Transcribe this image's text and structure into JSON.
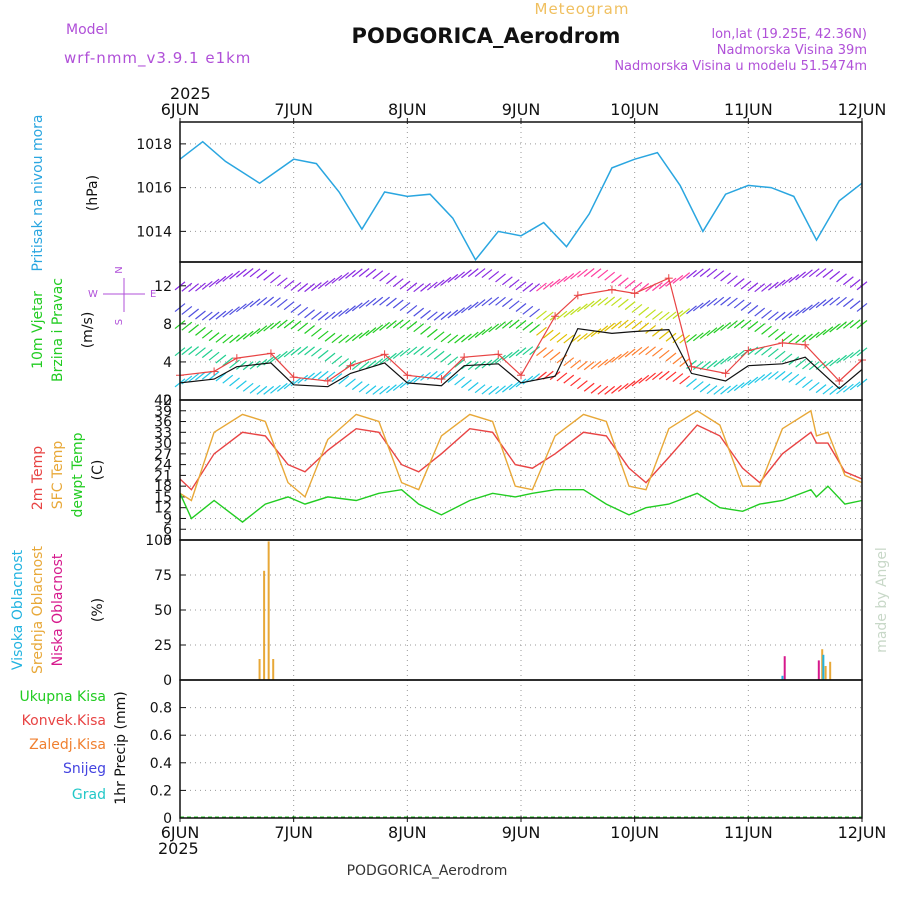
{
  "header": {
    "model_label": "Model",
    "model_value": "wrf-nmm_v3.9.1 e1km",
    "meteogram_label": "Meteogram",
    "station_title": "PODGORICA_Aerodrom",
    "coords": "lon,lat (19.25E, 42.36N)",
    "altitude": "Nadmorska Visina 39m",
    "model_altitude": "Nadmorska Visina u modelu 51.5474m"
  },
  "footer": {
    "station": "PODGORICA_Aerodrom",
    "credit": "made by Angel"
  },
  "time_axis": {
    "year": "2025",
    "days": [
      "6JUN",
      "7JUN",
      "8JUN",
      "9JUN",
      "10JUN",
      "11JUN",
      "12JUN"
    ]
  },
  "colors": {
    "pressure": "#2aa6e0",
    "temp2m": "#e84444",
    "sfc_temp": "#e8a838",
    "dewpt": "#22cc22",
    "wind_speed": "#111111",
    "gust": "#e84444",
    "high_cloud": "#22b3e0",
    "mid_cloud": "#e8a838",
    "low_cloud": "#d6188c",
    "title": "#111111",
    "purple": "#b050d8"
  },
  "panel_labels": {
    "pressure": {
      "name": "Pritisak na nivou mora",
      "unit": "(hPa)"
    },
    "wind": {
      "name1": "10m Vjetar",
      "name2": "Brzina i Pravac",
      "unit": "(m/s)",
      "compass_n": "N",
      "compass_w": "W",
      "compass_e": "E",
      "compass_s": "S"
    },
    "temp": {
      "name1": "2m Temp",
      "name2": "SFC Temp",
      "name3": "dewpt Temp",
      "unit": "(C)"
    },
    "cloud": {
      "name1": "Visoka Oblacnost",
      "name2": "Srednja Oblacnost",
      "name3": "Niska Oblacnost",
      "unit": "(%)"
    },
    "precip": {
      "unit": "1hr Precip (mm)",
      "legend": [
        "Ukupna Kisa",
        "Konvek.Kisa",
        "Zaledj.Kisa",
        "Snijeg",
        "Grad"
      ]
    }
  },
  "chart_data": [
    {
      "type": "line",
      "name": "pressure",
      "x_unit": "days from 6JUN 00h",
      "ylim": [
        1012.6,
        1019
      ],
      "yticks": [
        "1014",
        "1016",
        "1018"
      ],
      "x": [
        0,
        0.2,
        0.4,
        0.7,
        1.0,
        1.2,
        1.4,
        1.6,
        1.8,
        2.0,
        2.2,
        2.4,
        2.6,
        2.8,
        3.0,
        3.2,
        3.4,
        3.6,
        3.8,
        4.0,
        4.2,
        4.4,
        4.6,
        4.8,
        5.0,
        5.2,
        5.4,
        5.6,
        5.8,
        6.0
      ],
      "series": [
        {
          "values": [
            1017.3,
            1018.1,
            1017.2,
            1016.2,
            1017.3,
            1017.1,
            1015.8,
            1014.1,
            1015.8,
            1015.6,
            1015.7,
            1014.6,
            1012.7,
            1014.0,
            1013.8,
            1014.4,
            1013.3,
            1014.8,
            1016.9,
            1017.3,
            1017.6,
            1016.1,
            1014.0,
            1015.7,
            1016.1,
            1016.0,
            1015.6,
            1013.6,
            1015.4,
            1016.2
          ]
        }
      ]
    },
    {
      "type": "line",
      "name": "wind",
      "ylim": [
        0,
        14.5
      ],
      "yticks": [
        "0",
        "4",
        "8",
        "12"
      ],
      "x": [
        0,
        0.3,
        0.5,
        0.8,
        1.0,
        1.3,
        1.5,
        1.8,
        2.0,
        2.3,
        2.5,
        2.8,
        3.0,
        3.3,
        3.5,
        3.8,
        4.0,
        4.3,
        4.5,
        4.8,
        5.0,
        5.3,
        5.5,
        5.8,
        6.0
      ],
      "series": [
        {
          "values": [
            1.8,
            2.2,
            3.5,
            3.9,
            1.6,
            1.4,
            2.8,
            3.9,
            1.8,
            1.5,
            3.6,
            3.8,
            1.8,
            2.5,
            7.5,
            7.0,
            7.2,
            7.4,
            2.8,
            2.0,
            3.6,
            3.8,
            4.5,
            1.2,
            3.2
          ]
        },
        {
          "values": [
            2.6,
            3.0,
            4.4,
            4.9,
            2.4,
            2.0,
            3.6,
            4.8,
            2.6,
            2.2,
            4.5,
            4.8,
            2.6,
            8.8,
            11.0,
            11.6,
            11.2,
            12.8,
            3.5,
            2.8,
            5.2,
            6.0,
            5.8,
            2.0,
            4.2
          ]
        }
      ]
    },
    {
      "type": "line",
      "name": "temperature",
      "ylim": [
        3,
        42
      ],
      "yticks": [
        "3",
        "6",
        "9",
        "12",
        "15",
        "18",
        "21",
        "24",
        "27",
        "30",
        "33",
        "36",
        "39",
        "42"
      ],
      "x": [
        0,
        0.1,
        0.3,
        0.55,
        0.75,
        0.95,
        1.1,
        1.3,
        1.55,
        1.75,
        1.95,
        2.1,
        2.3,
        2.55,
        2.75,
        2.95,
        3.1,
        3.3,
        3.55,
        3.75,
        3.95,
        4.1,
        4.3,
        4.55,
        4.75,
        4.95,
        5.1,
        5.3,
        5.55,
        5.6,
        5.7,
        5.85,
        6.0
      ],
      "series": [
        {
          "values": [
            20,
            17,
            27,
            33,
            32,
            24,
            22,
            28,
            34,
            33,
            24,
            22,
            27,
            34,
            33,
            24,
            23,
            27,
            33,
            32,
            23,
            19,
            26,
            35,
            32,
            23,
            19,
            27,
            33,
            30,
            30,
            22,
            20
          ]
        },
        {
          "values": [
            16,
            14,
            33,
            38,
            36,
            19,
            15,
            31,
            38,
            36,
            19,
            17,
            32,
            38,
            36,
            18,
            17,
            32,
            38,
            36,
            18,
            17,
            34,
            39,
            35,
            18,
            18,
            34,
            39,
            32,
            33,
            21,
            19
          ]
        },
        {
          "values": [
            16,
            9,
            14,
            8,
            13,
            15,
            13,
            15,
            14,
            16,
            17,
            13,
            10,
            14,
            16,
            15,
            16,
            17,
            17,
            13,
            10,
            12,
            13,
            16,
            12,
            11,
            13,
            14,
            17,
            15,
            18,
            13,
            14
          ]
        }
      ]
    },
    {
      "type": "bar",
      "name": "cloud_cover",
      "ylim": [
        0,
        100
      ],
      "yticks": [
        "0",
        "25",
        "50",
        "75",
        "100"
      ],
      "series": [
        {
          "name": "Srednja Oblacnost",
          "x": [
            0.7,
            0.74,
            0.78,
            0.82,
            5.65,
            5.68,
            5.72
          ],
          "values": [
            15,
            78,
            99,
            15,
            22,
            10,
            13
          ]
        },
        {
          "name": "Niska Oblacnost",
          "x": [
            5.32,
            5.62
          ],
          "values": [
            17,
            14
          ]
        },
        {
          "name": "Visoka Oblacnost",
          "x": [
            5.3,
            5.66
          ],
          "values": [
            3,
            18
          ]
        }
      ]
    },
    {
      "type": "bar",
      "name": "precipitation",
      "ylim": [
        0,
        1
      ],
      "yticks": [
        "0",
        "0.2",
        "0.4",
        "0.6",
        "0.8"
      ],
      "series": [
        {
          "name": "Ukupna Kisa",
          "values": []
        }
      ]
    }
  ]
}
